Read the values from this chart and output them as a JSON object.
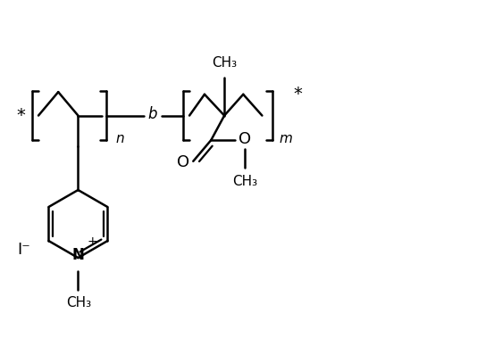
{
  "bg_color": "#ffffff",
  "line_color": "#000000",
  "lw": 1.8,
  "fw": 5.34,
  "fh": 4.07,
  "dpi": 100,
  "xlim": [
    0,
    10
  ],
  "ylim": [
    0,
    7.6
  ]
}
